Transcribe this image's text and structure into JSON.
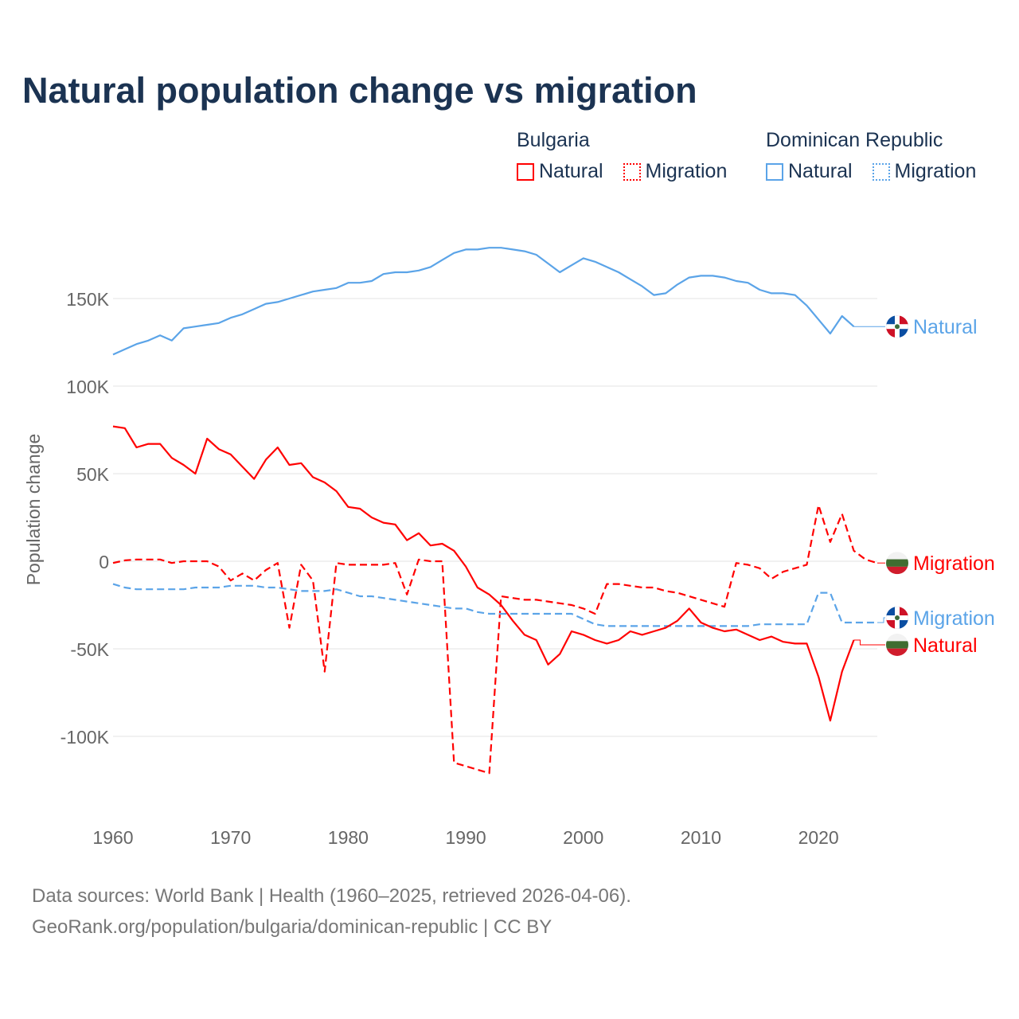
{
  "title": "Natural population change vs migration",
  "legend": {
    "groups": [
      {
        "name": "Bulgaria",
        "color": "#ff0000",
        "items": [
          "Natural",
          "Migration"
        ]
      },
      {
        "name": "Dominican Republic",
        "color": "#5ba4e8",
        "items": [
          "Natural",
          "Migration"
        ]
      }
    ]
  },
  "footer": {
    "line1": "Data sources: World Bank | Health (1960–2025, retrieved 2026-04-06).",
    "line2": "GeoRank.org/population/bulgaria/dominican-republic | CC BY"
  },
  "chart_data": {
    "type": "line",
    "title": "Natural population change vs migration",
    "xlabel": "",
    "ylabel": "Population change",
    "xlim": [
      1960,
      2025
    ],
    "ylim": [
      -130,
      185
    ],
    "y_unit": "thousands",
    "grid": true,
    "x_ticks": [
      {
        "v": 1960,
        "label": "1960"
      },
      {
        "v": 1970,
        "label": "1970"
      },
      {
        "v": 1980,
        "label": "1980"
      },
      {
        "v": 1990,
        "label": "1990"
      },
      {
        "v": 2000,
        "label": "2000"
      },
      {
        "v": 2010,
        "label": "2010"
      },
      {
        "v": 2020,
        "label": "2020"
      }
    ],
    "y_ticks": [
      {
        "v": 150,
        "label": "150K"
      },
      {
        "v": 100,
        "label": "100K"
      },
      {
        "v": 50,
        "label": "50K"
      },
      {
        "v": 0,
        "label": "0"
      },
      {
        "v": -50,
        "label": "-50K"
      },
      {
        "v": -100,
        "label": "-100K"
      }
    ],
    "series": [
      {
        "name": "Dominican Republic Natural",
        "country": "Dominican Republic",
        "label": "Natural",
        "color": "#5ba4e8",
        "dashed": false,
        "flag": "dominican-republic",
        "start": 1960,
        "values": [
          118,
          121,
          124,
          126,
          129,
          126,
          133,
          134,
          135,
          136,
          139,
          141,
          144,
          147,
          148,
          150,
          152,
          154,
          155,
          156,
          159,
          159,
          160,
          164,
          165,
          165,
          166,
          168,
          172,
          176,
          178,
          178,
          179,
          179,
          178,
          177,
          175,
          170,
          165,
          169,
          173,
          171,
          168,
          165,
          161,
          157,
          152,
          153,
          158,
          162,
          163,
          163,
          162,
          160,
          159,
          155,
          153,
          153,
          152,
          146,
          138,
          130,
          140,
          134
        ]
      },
      {
        "name": "Bulgaria Migration",
        "country": "Bulgaria",
        "label": "Migration",
        "color": "#ff0000",
        "dashed": true,
        "flag": "bulgaria",
        "start": 1960,
        "values": [
          -1,
          0.5,
          1,
          1,
          1,
          -1,
          0,
          0,
          0,
          -3,
          -11,
          -7,
          -11,
          -5,
          -1,
          -38,
          -2,
          -11,
          -63,
          -1,
          -2,
          -2,
          -2,
          -2,
          -1,
          -19,
          1,
          0,
          0,
          -115,
          -117,
          -119,
          -121,
          -20,
          -21,
          -22,
          -22,
          -23,
          -24,
          -25,
          -27,
          -30,
          -13,
          -13,
          -14,
          -15,
          -15,
          -17,
          -18,
          -20,
          -22,
          -24,
          -26,
          -1,
          -2,
          -4,
          -10,
          -6,
          -4,
          -2,
          32,
          11,
          27,
          6,
          1,
          -1
        ]
      },
      {
        "name": "Dominican Republic Migration",
        "country": "Dominican Republic",
        "label": "Migration",
        "color": "#5ba4e8",
        "dashed": true,
        "flag": "dominican-republic",
        "start": 1960,
        "values": [
          -13,
          -15,
          -16,
          -16,
          -16,
          -16,
          -16,
          -15,
          -15,
          -15,
          -14,
          -14,
          -14,
          -15,
          -15,
          -16,
          -17,
          -17,
          -17,
          -16,
          -18,
          -20,
          -20,
          -21,
          -22,
          -23,
          -24,
          -25,
          -26,
          -27,
          -27,
          -29,
          -30,
          -30,
          -30,
          -30,
          -30,
          -30,
          -30,
          -30,
          -33,
          -36,
          -37,
          -37,
          -37,
          -37,
          -37,
          -37,
          -37,
          -37,
          -37,
          -37,
          -37,
          -37,
          -37,
          -36,
          -36,
          -36,
          -36,
          -36,
          -18,
          -18,
          -35,
          -35,
          -35,
          -35
        ]
      },
      {
        "name": "Bulgaria Natural",
        "country": "Bulgaria",
        "label": "Natural",
        "color": "#ff0000",
        "dashed": false,
        "flag": "bulgaria",
        "start": 1960,
        "values": [
          77,
          76,
          65,
          67,
          67,
          59,
          55,
          50,
          70,
          64,
          61,
          54,
          47,
          58,
          65,
          55,
          56,
          48,
          45,
          40,
          31,
          30,
          25,
          22,
          21,
          12,
          16,
          9,
          10,
          6,
          -3,
          -15,
          -19,
          -25,
          -34,
          -42,
          -45,
          -59,
          -53,
          -40,
          -42,
          -45,
          -47,
          -45,
          -40,
          -42,
          -40,
          -38,
          -34,
          -27,
          -35,
          -38,
          -40,
          -39,
          -42,
          -45,
          -43,
          -46,
          -47,
          -47,
          -66,
          -91,
          -63,
          -45
        ]
      }
    ]
  }
}
